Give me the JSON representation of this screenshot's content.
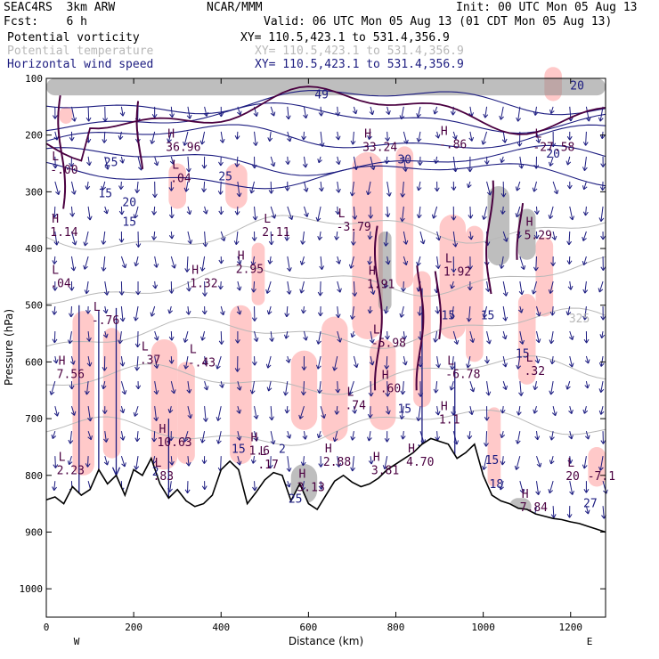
{
  "header": {
    "model": "SEAC4RS  3km ARW",
    "org": "NCAR/MMM",
    "init": "Init: 00 UTC Mon 05 Aug 13",
    "fcst": "Fcst:    6 h",
    "valid": "Valid: 06 UTC Mon 05 Aug 13 (01 CDT Mon 05 Aug 13)",
    "fields": [
      {
        "name": "Potential vorticity",
        "xy": "XY= 110.5,423.1 to 531.4,356.9",
        "color": "#000000"
      },
      {
        "name": "Potential temperature",
        "xy": "XY= 110.5,423.1 to 531.4,356.9",
        "color": "#b8b8b8"
      },
      {
        "name": "Horizontal wind speed",
        "xy": "XY= 110.5,423.1 to 531.4,356.9",
        "color": "#1c1c80"
      }
    ]
  },
  "colors": {
    "pv_shade_low": "#ffc0c0",
    "pv_shade_high": "#888888",
    "pv_contour": "#4a0040",
    "theta_contour": "#b8b8b8",
    "wind": "#1c1c80",
    "terrain": "#000000"
  },
  "chart_data": {
    "type": "cross-section",
    "xlabel": "Distance (km)",
    "ylabel": "Pressure (hPa)",
    "xlim": [
      0,
      1280
    ],
    "ylim": [
      1050,
      100
    ],
    "x_ticks": [
      0,
      200,
      400,
      600,
      800,
      1000,
      1200
    ],
    "y_ticks": [
      100,
      200,
      300,
      400,
      500,
      600,
      700,
      800,
      900,
      1000
    ],
    "ends": {
      "left": "W",
      "right": "E"
    },
    "terrain_profile": [
      {
        "x": 0,
        "p": 843
      },
      {
        "x": 20,
        "p": 838
      },
      {
        "x": 40,
        "p": 850
      },
      {
        "x": 60,
        "p": 820
      },
      {
        "x": 80,
        "p": 835
      },
      {
        "x": 100,
        "p": 825
      },
      {
        "x": 120,
        "p": 790
      },
      {
        "x": 140,
        "p": 815
      },
      {
        "x": 160,
        "p": 800
      },
      {
        "x": 180,
        "p": 835
      },
      {
        "x": 200,
        "p": 790
      },
      {
        "x": 220,
        "p": 800
      },
      {
        "x": 240,
        "p": 770
      },
      {
        "x": 260,
        "p": 815
      },
      {
        "x": 280,
        "p": 840
      },
      {
        "x": 300,
        "p": 825
      },
      {
        "x": 320,
        "p": 845
      },
      {
        "x": 340,
        "p": 855
      },
      {
        "x": 360,
        "p": 850
      },
      {
        "x": 380,
        "p": 835
      },
      {
        "x": 400,
        "p": 790
      },
      {
        "x": 420,
        "p": 775
      },
      {
        "x": 440,
        "p": 790
      },
      {
        "x": 460,
        "p": 850
      },
      {
        "x": 480,
        "p": 830
      },
      {
        "x": 500,
        "p": 808
      },
      {
        "x": 520,
        "p": 795
      },
      {
        "x": 540,
        "p": 800
      },
      {
        "x": 560,
        "p": 845
      },
      {
        "x": 580,
        "p": 815
      },
      {
        "x": 600,
        "p": 850
      },
      {
        "x": 620,
        "p": 860
      },
      {
        "x": 640,
        "p": 835
      },
      {
        "x": 660,
        "p": 810
      },
      {
        "x": 680,
        "p": 800
      },
      {
        "x": 700,
        "p": 812
      },
      {
        "x": 720,
        "p": 820
      },
      {
        "x": 740,
        "p": 815
      },
      {
        "x": 760,
        "p": 805
      },
      {
        "x": 780,
        "p": 790
      },
      {
        "x": 800,
        "p": 780
      },
      {
        "x": 820,
        "p": 770
      },
      {
        "x": 840,
        "p": 760
      },
      {
        "x": 860,
        "p": 745
      },
      {
        "x": 880,
        "p": 735
      },
      {
        "x": 900,
        "p": 740
      },
      {
        "x": 920,
        "p": 745
      },
      {
        "x": 940,
        "p": 770
      },
      {
        "x": 960,
        "p": 760
      },
      {
        "x": 980,
        "p": 745
      },
      {
        "x": 1000,
        "p": 800
      },
      {
        "x": 1020,
        "p": 835
      },
      {
        "x": 1040,
        "p": 845
      },
      {
        "x": 1060,
        "p": 850
      },
      {
        "x": 1080,
        "p": 858
      },
      {
        "x": 1100,
        "p": 860
      },
      {
        "x": 1120,
        "p": 868
      },
      {
        "x": 1140,
        "p": 872
      },
      {
        "x": 1160,
        "p": 876
      },
      {
        "x": 1180,
        "p": 878
      },
      {
        "x": 1200,
        "p": 882
      },
      {
        "x": 1220,
        "p": 885
      },
      {
        "x": 1240,
        "p": 890
      },
      {
        "x": 1260,
        "p": 895
      },
      {
        "x": 1280,
        "p": 900
      }
    ],
    "pv_shading": [
      {
        "x0": 60,
        "x1": 110,
        "p0": 510,
        "p1": 800,
        "level": "low"
      },
      {
        "x0": 130,
        "x1": 170,
        "p0": 540,
        "p1": 770,
        "level": "low"
      },
      {
        "x0": 240,
        "x1": 300,
        "p0": 560,
        "p1": 790,
        "level": "low"
      },
      {
        "x0": 280,
        "x1": 320,
        "p0": 250,
        "p1": 330,
        "level": "low"
      },
      {
        "x0": 300,
        "x1": 340,
        "p0": 600,
        "p1": 780,
        "level": "low"
      },
      {
        "x0": 410,
        "x1": 460,
        "p0": 250,
        "p1": 330,
        "level": "low"
      },
      {
        "x0": 420,
        "x1": 470,
        "p0": 500,
        "p1": 780,
        "level": "low"
      },
      {
        "x0": 470,
        "x1": 500,
        "p0": 390,
        "p1": 500,
        "level": "low"
      },
      {
        "x0": 560,
        "x1": 620,
        "p0": 580,
        "p1": 720,
        "level": "low"
      },
      {
        "x0": 630,
        "x1": 690,
        "p0": 520,
        "p1": 740,
        "level": "low"
      },
      {
        "x0": 700,
        "x1": 770,
        "p0": 230,
        "p1": 560,
        "level": "low"
      },
      {
        "x0": 740,
        "x1": 800,
        "p0": 560,
        "p1": 720,
        "level": "low"
      },
      {
        "x0": 800,
        "x1": 840,
        "p0": 220,
        "p1": 470,
        "level": "low"
      },
      {
        "x0": 840,
        "x1": 880,
        "p0": 440,
        "p1": 680,
        "level": "low"
      },
      {
        "x0": 900,
        "x1": 960,
        "p0": 340,
        "p1": 560,
        "level": "low"
      },
      {
        "x0": 960,
        "x1": 1000,
        "p0": 360,
        "p1": 600,
        "level": "low"
      },
      {
        "x0": 1010,
        "x1": 1040,
        "p0": 680,
        "p1": 820,
        "level": "low"
      },
      {
        "x0": 1080,
        "x1": 1120,
        "p0": 480,
        "p1": 640,
        "level": "low"
      },
      {
        "x0": 1120,
        "x1": 1160,
        "p0": 380,
        "p1": 520,
        "level": "low"
      },
      {
        "x0": 1240,
        "x1": 1280,
        "p0": 750,
        "p1": 820,
        "level": "low"
      },
      {
        "x0": 30,
        "x1": 60,
        "p0": 150,
        "p1": 180,
        "level": "low"
      },
      {
        "x0": 1140,
        "x1": 1180,
        "p0": 80,
        "p1": 140,
        "level": "low"
      },
      {
        "x0": 0,
        "x1": 1280,
        "p0": 100,
        "p1": 130,
        "level": "high"
      },
      {
        "x0": 760,
        "x1": 790,
        "p0": 370,
        "p1": 510,
        "level": "high"
      },
      {
        "x0": 1010,
        "x1": 1060,
        "p0": 290,
        "p1": 430,
        "level": "high"
      },
      {
        "x0": 1080,
        "x1": 1120,
        "p0": 330,
        "p1": 420,
        "level": "high"
      },
      {
        "x0": 560,
        "x1": 620,
        "p0": 780,
        "p1": 850,
        "level": "high"
      },
      {
        "x0": 1060,
        "x1": 1110,
        "p0": 840,
        "p1": 870,
        "level": "high"
      }
    ],
    "theta_labels": [
      {
        "x": 1220,
        "p": 530,
        "text": "325"
      }
    ],
    "wind_speed_labels": [
      {
        "x": 1215,
        "p": 120,
        "text": "20"
      },
      {
        "x": 1160,
        "p": 240,
        "text": "20"
      },
      {
        "x": 820,
        "p": 250,
        "text": "30"
      },
      {
        "x": 630,
        "p": 135,
        "text": "49"
      },
      {
        "x": 410,
        "p": 280,
        "text": "25"
      },
      {
        "x": 148,
        "p": 255,
        "text": "25"
      },
      {
        "x": 190,
        "p": 325,
        "text": "20"
      },
      {
        "x": 135,
        "p": 310,
        "text": "15"
      },
      {
        "x": 190,
        "p": 360,
        "text": "15"
      },
      {
        "x": 920,
        "p": 525,
        "text": "15"
      },
      {
        "x": 1010,
        "p": 525,
        "text": "15"
      },
      {
        "x": 1090,
        "p": 592,
        "text": "15"
      },
      {
        "x": 820,
        "p": 690,
        "text": "15"
      },
      {
        "x": 440,
        "p": 760,
        "text": "15"
      },
      {
        "x": 1020,
        "p": 780,
        "text": "15"
      },
      {
        "x": 1030,
        "p": 822,
        "text": "18"
      },
      {
        "x": 570,
        "p": 848,
        "text": "25"
      },
      {
        "x": 540,
        "p": 760,
        "text": "2"
      },
      {
        "x": 250,
        "p": 800,
        "text": "2"
      },
      {
        "x": 1245,
        "p": 856,
        "text": "27"
      }
    ],
    "pv_extrema": [
      {
        "x": 25,
        "p": 265,
        "kind": "L",
        "value": "-.00"
      },
      {
        "x": 25,
        "p": 375,
        "kind": "H",
        "value": "1.14"
      },
      {
        "x": 25,
        "p": 465,
        "kind": "L",
        "value": ".04"
      },
      {
        "x": 120,
        "p": 530,
        "kind": "L",
        "value": "-.76"
      },
      {
        "x": 40,
        "p": 625,
        "kind": "H",
        "value": "7.56"
      },
      {
        "x": 230,
        "p": 600,
        "kind": "L",
        "value": ".37"
      },
      {
        "x": 340,
        "p": 605,
        "kind": "L",
        "value": "-.43"
      },
      {
        "x": 270,
        "p": 745,
        "kind": "H",
        "value": "10.63"
      },
      {
        "x": 40,
        "p": 795,
        "kind": "L",
        "value": "2.23"
      },
      {
        "x": 260,
        "p": 805,
        "kind": "L",
        "value": ".83"
      },
      {
        "x": 290,
        "p": 225,
        "kind": "H",
        "value": "36.96"
      },
      {
        "x": 300,
        "p": 280,
        "kind": "L",
        "value": ".04"
      },
      {
        "x": 510,
        "p": 375,
        "kind": "L",
        "value": "2.11"
      },
      {
        "x": 345,
        "p": 465,
        "kind": "H",
        "value": "1.32"
      },
      {
        "x": 450,
        "p": 440,
        "kind": "H",
        "value": "2.95"
      },
      {
        "x": 480,
        "p": 760,
        "kind": "H",
        "value": "1.6"
      },
      {
        "x": 500,
        "p": 785,
        "kind": "L",
        "value": ".17"
      },
      {
        "x": 650,
        "p": 780,
        "kind": "H",
        "value": "2.88"
      },
      {
        "x": 590,
        "p": 825,
        "kind": "H",
        "value": "3.13"
      },
      {
        "x": 680,
        "p": 365,
        "kind": "L",
        "value": "-3.79"
      },
      {
        "x": 740,
        "p": 225,
        "kind": "H",
        "value": "33.24"
      },
      {
        "x": 750,
        "p": 467,
        "kind": "H",
        "value": "1.91"
      },
      {
        "x": 760,
        "p": 570,
        "kind": "L",
        "value": "-5.98"
      },
      {
        "x": 780,
        "p": 650,
        "kind": "H",
        "value": ".60"
      },
      {
        "x": 700,
        "p": 680,
        "kind": "L",
        "value": ".74"
      },
      {
        "x": 760,
        "p": 795,
        "kind": "H",
        "value": "3.81"
      },
      {
        "x": 840,
        "p": 780,
        "kind": "H",
        "value": "4.70"
      },
      {
        "x": 925,
        "p": 445,
        "kind": "L",
        "value": "1.92"
      },
      {
        "x": 930,
        "p": 625,
        "kind": "L",
        "value": "-6.78"
      },
      {
        "x": 915,
        "p": 705,
        "kind": "H",
        "value": "1.1"
      },
      {
        "x": 915,
        "p": 220,
        "kind": "H",
        "value": "-.86"
      },
      {
        "x": 1130,
        "p": 225,
        "kind": "L",
        "value": "-27.58"
      },
      {
        "x": 1110,
        "p": 620,
        "kind": "L",
        "value": ".32"
      },
      {
        "x": 1110,
        "p": 380,
        "kind": "H",
        "value": "5.29"
      },
      {
        "x": 1100,
        "p": 860,
        "kind": "H",
        "value": "7.84"
      },
      {
        "x": 1205,
        "p": 805,
        "kind": "L",
        "value": "20"
      },
      {
        "x": 1255,
        "p": 805,
        "kind": "E",
        "value": "-7.1"
      }
    ]
  }
}
